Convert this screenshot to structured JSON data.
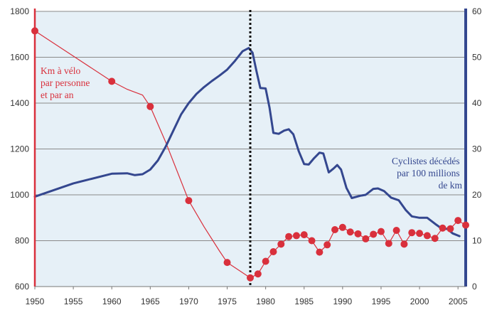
{
  "colors": {
    "left_series": "#d9303c",
    "right_series": "#34478f",
    "grid": "#8a8a8a",
    "background_band": "#e6f0f7",
    "divider": "#111111"
  },
  "chart_data": {
    "type": "line",
    "title": "",
    "x_ticks": [
      "1950",
      "1955",
      "1960",
      "1965",
      "1970",
      "1975",
      "1980",
      "1985",
      "1990",
      "1995",
      "2000",
      "2005"
    ],
    "xlim": [
      1950,
      2006
    ],
    "left_axis": {
      "ylim": [
        600,
        1800
      ],
      "ticks": [
        "600",
        "800",
        "1000",
        "1200",
        "1400",
        "1600",
        "1800"
      ]
    },
    "right_axis": {
      "ylim": [
        0,
        60
      ],
      "ticks": [
        "0",
        "10",
        "20",
        "30",
        "40",
        "50",
        "60"
      ]
    },
    "vertical_marker_x": 1978,
    "left_annotation": [
      "Km à vélo",
      "par personne",
      "et par an"
    ],
    "right_annotation": [
      "Cyclistes décédés",
      "par 100 millions",
      "de km"
    ],
    "series": [
      {
        "name": "Km à vélo par personne et par an",
        "axis": "left",
        "markers": true,
        "points": [
          [
            1950,
            1715
          ],
          [
            1960,
            1495
          ],
          [
            1965,
            1385
          ],
          [
            1970,
            975
          ],
          [
            1975,
            705
          ],
          [
            1978,
            638
          ],
          [
            1979,
            655
          ],
          [
            1980,
            710
          ],
          [
            1981,
            752
          ],
          [
            1982,
            785
          ],
          [
            1983,
            818
          ],
          [
            1984,
            822
          ],
          [
            1985,
            826
          ],
          [
            1986,
            800
          ],
          [
            1987,
            750
          ],
          [
            1988,
            782
          ],
          [
            1989,
            848
          ],
          [
            1990,
            858
          ],
          [
            1991,
            838
          ],
          [
            1992,
            830
          ],
          [
            1993,
            808
          ],
          [
            1994,
            828
          ],
          [
            1995,
            840
          ],
          [
            1996,
            788
          ],
          [
            1997,
            845
          ],
          [
            1998,
            785
          ],
          [
            1999,
            835
          ],
          [
            2000,
            832
          ],
          [
            2001,
            822
          ],
          [
            2002,
            810
          ],
          [
            2003,
            855
          ],
          [
            2004,
            852
          ],
          [
            2005,
            888
          ],
          [
            2006,
            868
          ]
        ],
        "curve_shape": [
          [
            1950,
            1715
          ],
          [
            1955,
            1605
          ],
          [
            1960,
            1495
          ],
          [
            1962,
            1460
          ],
          [
            1964,
            1435
          ],
          [
            1965,
            1385
          ],
          [
            1967,
            1230
          ],
          [
            1970,
            975
          ],
          [
            1972,
            860
          ],
          [
            1974,
            755
          ],
          [
            1975,
            705
          ],
          [
            1978,
            638
          ]
        ]
      },
      {
        "name": "Cyclistes décédés par 100 millions de km",
        "axis": "right",
        "markers": false,
        "points": [
          [
            1950,
            19.6
          ],
          [
            1955,
            22.5
          ],
          [
            1960,
            24.6
          ],
          [
            1962,
            24.7
          ],
          [
            1963,
            24.3
          ],
          [
            1964,
            24.5
          ],
          [
            1965,
            25.5
          ],
          [
            1966,
            27.5
          ],
          [
            1967,
            30.5
          ],
          [
            1968,
            34.0
          ],
          [
            1969,
            37.5
          ],
          [
            1970,
            40.0
          ],
          [
            1971,
            42.0
          ],
          [
            1972,
            43.5
          ],
          [
            1973,
            44.8
          ],
          [
            1974,
            46.0
          ],
          [
            1975,
            47.3
          ],
          [
            1976,
            49.2
          ],
          [
            1977,
            51.3
          ],
          [
            1977.8,
            52.0
          ],
          [
            1978.3,
            51.0
          ],
          [
            1978.8,
            47.0
          ],
          [
            1979.3,
            43.3
          ],
          [
            1980,
            43.2
          ],
          [
            1980.5,
            39.0
          ],
          [
            1981,
            33.5
          ],
          [
            1981.7,
            33.3
          ],
          [
            1982.4,
            34.0
          ],
          [
            1983,
            34.3
          ],
          [
            1983.6,
            33.2
          ],
          [
            1984.3,
            29.5
          ],
          [
            1985,
            26.7
          ],
          [
            1985.6,
            26.6
          ],
          [
            1986.3,
            28.0
          ],
          [
            1987,
            29.2
          ],
          [
            1987.5,
            29.0
          ],
          [
            1988.2,
            24.9
          ],
          [
            1988.8,
            25.7
          ],
          [
            1989.3,
            26.5
          ],
          [
            1989.8,
            25.5
          ],
          [
            1990.5,
            21.5
          ],
          [
            1991.2,
            19.3
          ],
          [
            1992.3,
            19.8
          ],
          [
            1993,
            20.0
          ],
          [
            1994,
            21.3
          ],
          [
            1994.6,
            21.4
          ],
          [
            1995.4,
            20.8
          ],
          [
            1996.3,
            19.4
          ],
          [
            1997.3,
            18.8
          ],
          [
            1998.2,
            16.7
          ],
          [
            1999,
            15.3
          ],
          [
            2000,
            15.0
          ],
          [
            2001,
            15.0
          ],
          [
            2002,
            13.7
          ],
          [
            2003,
            12.5
          ],
          [
            2003.6,
            12.6
          ],
          [
            2004.3,
            11.6
          ],
          [
            2005.2,
            11.0
          ]
        ]
      }
    ]
  }
}
